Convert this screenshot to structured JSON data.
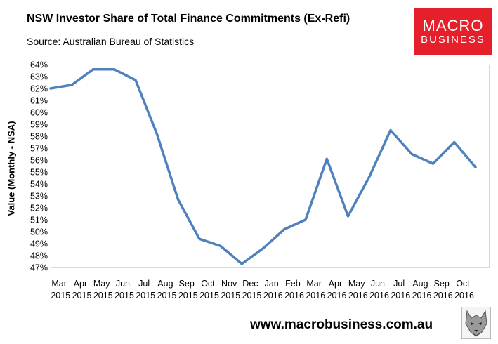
{
  "header": {
    "title": "NSW Investor Share of Total Finance Commitments (Ex-Refi)",
    "subtitle": "Source: Australian Bureau of Statistics"
  },
  "logo": {
    "line1": "MACRO",
    "line2": "BUSINESS",
    "color": "#e5202a"
  },
  "footer": {
    "website": "www.macrobusiness.com.au"
  },
  "chart_data": {
    "type": "line",
    "ylabel": "Value (Monthly - NSA)",
    "ylim": [
      47,
      64
    ],
    "y_ticks": [
      "47%",
      "48%",
      "49%",
      "50%",
      "51%",
      "52%",
      "53%",
      "54%",
      "55%",
      "56%",
      "57%",
      "58%",
      "59%",
      "60%",
      "61%",
      "62%",
      "63%",
      "64%"
    ],
    "x_ticks": [
      {
        "month": "Mar-",
        "year": "2015"
      },
      {
        "month": "Apr-",
        "year": "2015"
      },
      {
        "month": "May-",
        "year": "2015"
      },
      {
        "month": "Jun-",
        "year": "2015"
      },
      {
        "month": "Jul-",
        "year": "2015"
      },
      {
        "month": "Aug-",
        "year": "2015"
      },
      {
        "month": "Sep-",
        "year": "2015"
      },
      {
        "month": "Oct-",
        "year": "2015"
      },
      {
        "month": "Nov-",
        "year": "2015"
      },
      {
        "month": "Dec-",
        "year": "2015"
      },
      {
        "month": "Jan-",
        "year": "2016"
      },
      {
        "month": "Feb-",
        "year": "2016"
      },
      {
        "month": "Mar-",
        "year": "2016"
      },
      {
        "month": "Apr-",
        "year": "2016"
      },
      {
        "month": "May-",
        "year": "2016"
      },
      {
        "month": "Jun-",
        "year": "2016"
      },
      {
        "month": "Jul-",
        "year": "2016"
      },
      {
        "month": "Aug-",
        "year": "2016"
      },
      {
        "month": "Sep-",
        "year": "2016"
      },
      {
        "month": "Oct-",
        "year": "2016"
      }
    ],
    "x": [
      "2015-02",
      "2015-03",
      "2015-04",
      "2015-05",
      "2015-06",
      "2015-07",
      "2015-08",
      "2015-09",
      "2015-10",
      "2015-11",
      "2015-12",
      "2016-01",
      "2016-02",
      "2016-03",
      "2016-04",
      "2016-05",
      "2016-06",
      "2016-07",
      "2016-08",
      "2016-09",
      "2016-10"
    ],
    "series": [
      {
        "color": "#4f81bd",
        "values": [
          62.0,
          62.3,
          63.6,
          63.6,
          62.7,
          58.2,
          52.7,
          49.4,
          48.8,
          47.3,
          48.6,
          50.2,
          51.0,
          56.1,
          51.3,
          54.6,
          58.5,
          56.5,
          55.7,
          57.5,
          55.4
        ]
      }
    ],
    "grid": false,
    "legend": "none"
  }
}
